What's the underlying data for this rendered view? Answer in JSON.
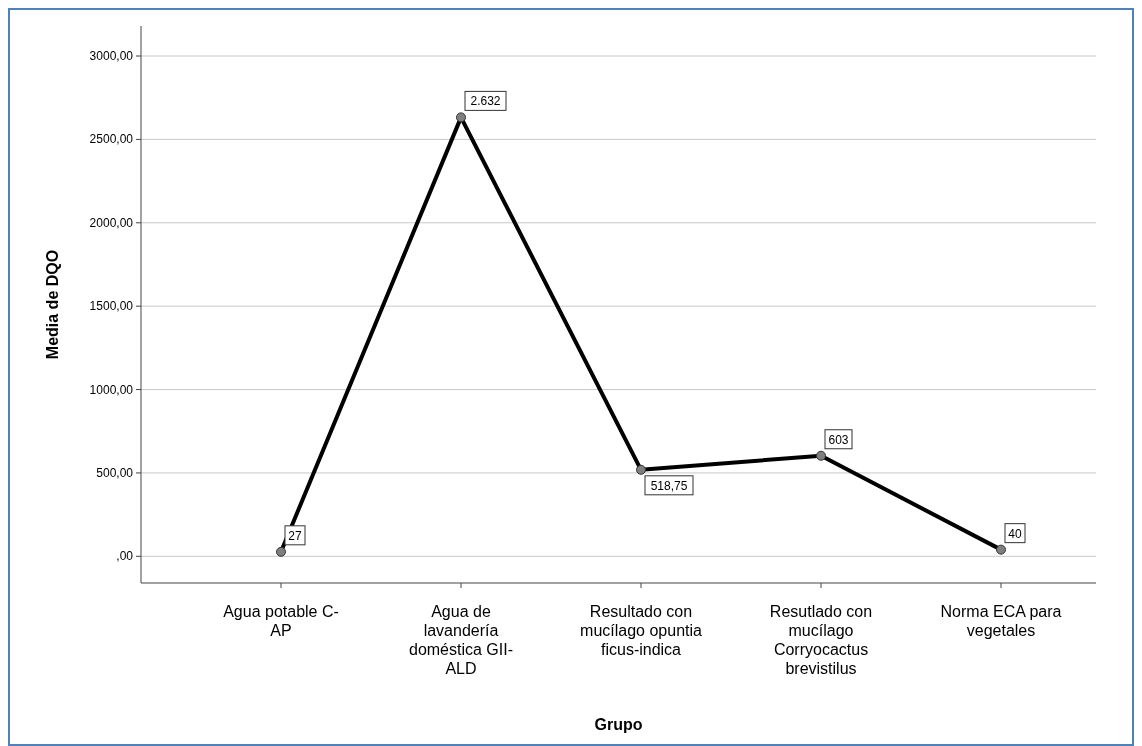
{
  "chart_data": {
    "type": "line",
    "xlabel": "Grupo",
    "ylabel": "Media de DQO",
    "categories": [
      "Agua potable C-AP",
      "Agua de lavandería doméstica GII-ALD",
      "Resultado con mucílago opuntia ficus-indica",
      "Resutlado con mucílago Corryocactus brevistilus",
      "Norma ECA para vegetales"
    ],
    "series": [
      {
        "color": "#000000",
        "values": [
          27,
          2632,
          518.75,
          603,
          40
        ],
        "value_labels": [
          "27",
          "2.632",
          "518,75",
          "603",
          "40"
        ]
      }
    ],
    "ylim": [
      -160,
      3180
    ],
    "yticks": [
      {
        "value": 0,
        "label": ",00"
      },
      {
        "value": 500,
        "label": "500,00"
      },
      {
        "value": 1000,
        "label": "1000,00"
      },
      {
        "value": 1500,
        "label": "1500,00"
      },
      {
        "value": 2000,
        "label": "2000,00"
      },
      {
        "value": 2500,
        "label": "2500,00"
      },
      {
        "value": 3000,
        "label": "3000,00"
      }
    ],
    "grid": "y",
    "marker": "circle",
    "line_style": "solid"
  }
}
